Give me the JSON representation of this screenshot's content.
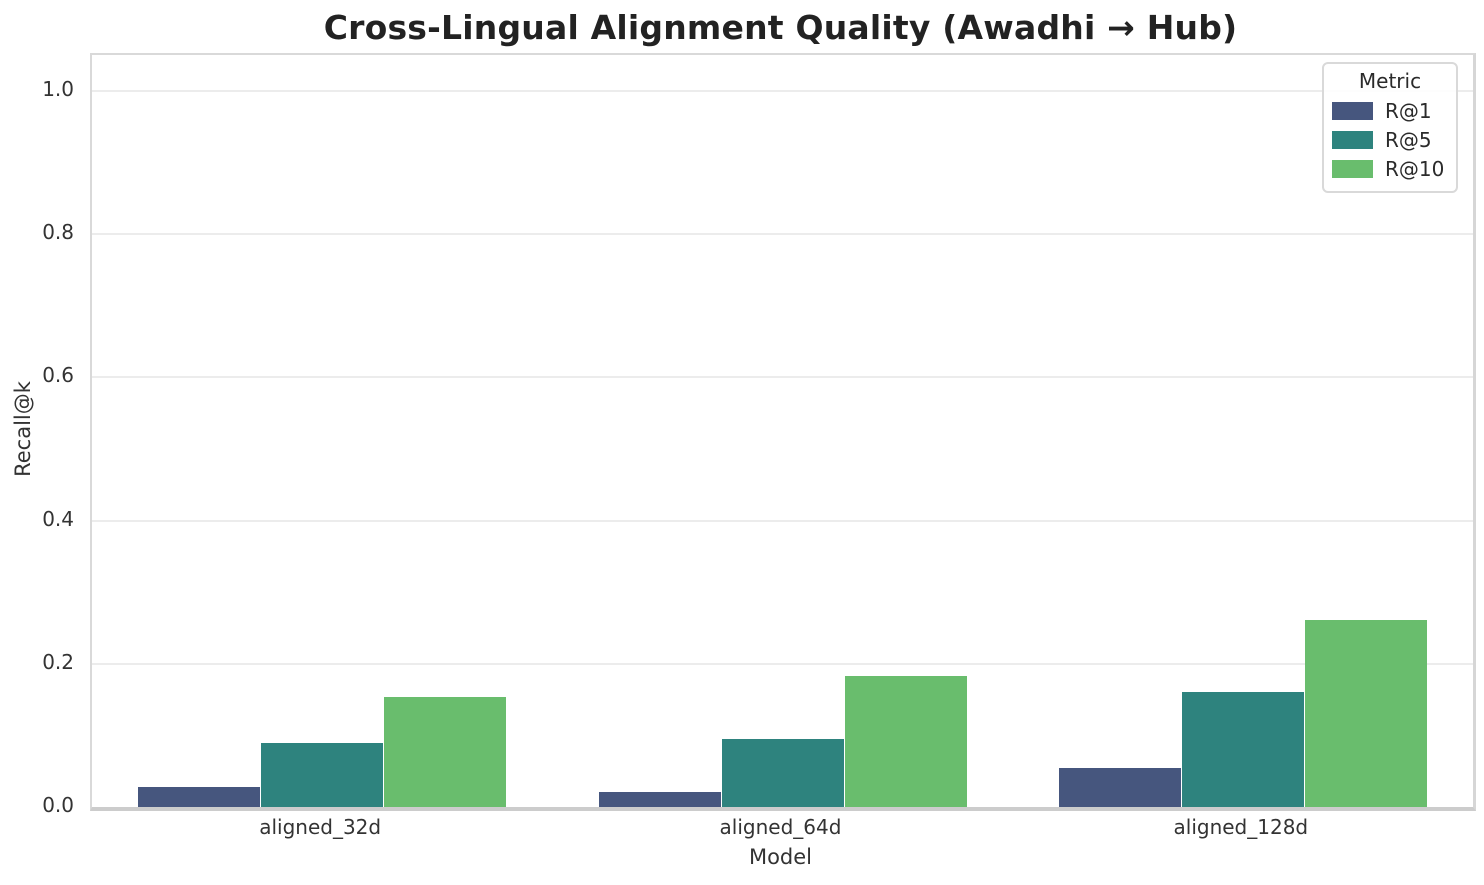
{
  "chart_data": {
    "type": "bar",
    "title": "Cross-Lingual Alignment Quality (Awadhi → Hub)",
    "xlabel": "Model",
    "ylabel": "Recall@k",
    "categories": [
      "aligned_32d",
      "aligned_64d",
      "aligned_128d"
    ],
    "series": [
      {
        "name": "R@1",
        "color": "#46567e",
        "values": [
          0.028,
          0.021,
          0.054
        ]
      },
      {
        "name": "R@5",
        "color": "#2e837e",
        "values": [
          0.09,
          0.095,
          0.161
        ]
      },
      {
        "name": "R@10",
        "color": "#69bd6d",
        "values": [
          0.153,
          0.183,
          0.261
        ]
      }
    ],
    "ylim": [
      0,
      1.05
    ],
    "yticks": [
      {
        "value": 0.0,
        "label": "0.0"
      },
      {
        "value": 0.2,
        "label": "0.2"
      },
      {
        "value": 0.4,
        "label": "0.4"
      },
      {
        "value": 0.6,
        "label": "0.6"
      },
      {
        "value": 0.8,
        "label": "0.8"
      },
      {
        "value": 1.0,
        "label": "1.0"
      }
    ],
    "grid": "horizontal",
    "legend": {
      "title": "Metric",
      "position": "upper-right",
      "labels": [
        "R@1",
        "R@5",
        "R@10"
      ]
    }
  },
  "style": {
    "background": "#ffffff",
    "text_color": "#333333",
    "grid_color": "#ececec",
    "spine_color": "#d9d9d9",
    "bottom_spine_color": "#cccccc"
  }
}
